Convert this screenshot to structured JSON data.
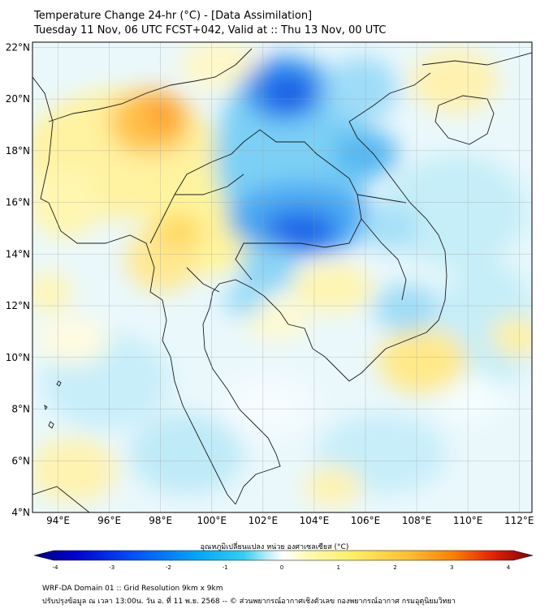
{
  "title": {
    "line1": "Temperature Change 24-hr (°C) - [Data Assimilation]",
    "line2": "Tuesday 11 Nov, 06 UTC FCST+042, Valid at :: Thu 13 Nov, 00 UTC"
  },
  "map": {
    "lon_range": [
      93,
      112.5
    ],
    "lat_range": [
      4,
      22.2
    ],
    "lon_ticks": [
      "94°E",
      "96°E",
      "98°E",
      "100°E",
      "102°E",
      "104°E",
      "106°E",
      "108°E",
      "110°E",
      "112°E"
    ],
    "lat_ticks": [
      "22°N",
      "20°N",
      "18°N",
      "16°N",
      "14°N",
      "12°N",
      "10°N",
      "8°N",
      "6°N",
      "4°N"
    ]
  },
  "colorbar": {
    "title": "อุณหภูมิเปลี่ยนแปลง หน่วย องศาเซลเซียส (°C)",
    "ticks": [
      "-4",
      "-3",
      "-2",
      "-1",
      "0",
      "1",
      "2",
      "3",
      "4"
    ],
    "colors": [
      "#00007f",
      "#0000d0",
      "#0050ff",
      "#00a8ff",
      "#2fd0f0",
      "#bfeef8",
      "#ffffff",
      "#fff9b0",
      "#ffee60",
      "#ffc030",
      "#ff8000",
      "#e82000",
      "#7f0000"
    ]
  },
  "footer": {
    "line1": "WRF-DA Domain 01 :: Grid Resolution 9km x 9km",
    "line2": "ปรับปรุงข้อมูล ณ เวลา 13:00น. วัน อ. ที่ 11 พ.ย. 2568 -- © ส่วนพยากรณ์อากาศเชิงตัวเลข กองพยากรณ์อากาศ กรมอุตุนิยมวิทยา"
  }
}
